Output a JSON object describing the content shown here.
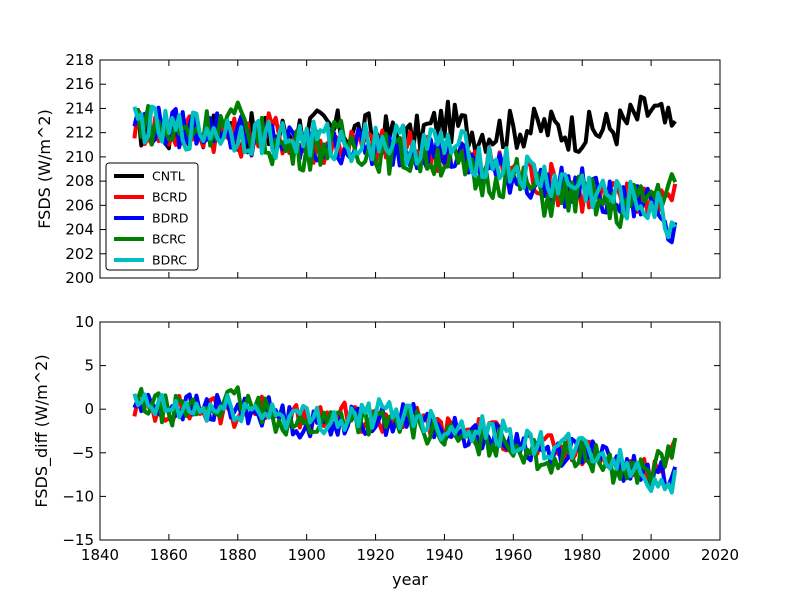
{
  "chart_data": [
    {
      "type": "line",
      "panel": "top",
      "xlabel": "",
      "ylabel": "FSDS (W/m^2)",
      "xlim": [
        1840,
        2020
      ],
      "ylim": [
        200,
        218
      ],
      "yticks": [
        "200",
        "202",
        "204",
        "206",
        "208",
        "210",
        "212",
        "214",
        "216",
        "218"
      ],
      "legend": {
        "placement": "lower-left"
      },
      "x": [
        1850,
        1860,
        1870,
        1880,
        1890,
        1900,
        1910,
        1920,
        1930,
        1940,
        1950,
        1960,
        1970,
        1980,
        1990,
        2000,
        2007
      ],
      "series": [
        {
          "name": "CNTL",
          "color": "#000000",
          "values": [
            212.5,
            212.0,
            212.4,
            212.0,
            211.8,
            212.5,
            212.2,
            212.0,
            211.5,
            213.0,
            212.0,
            212.3,
            212.5,
            212.0,
            212.5,
            214.0,
            212.0
          ]
        },
        {
          "name": "BCRD",
          "color": "#ff0000",
          "values": [
            212.8,
            212.0,
            212.3,
            211.5,
            212.2,
            210.8,
            211.3,
            210.8,
            210.5,
            210.5,
            209.5,
            209.0,
            208.0,
            207.0,
            206.5,
            206.8,
            207.0
          ]
        },
        {
          "name": "BDRD",
          "color": "#0000ff",
          "values": [
            213.0,
            212.3,
            212.5,
            212.0,
            211.5,
            210.5,
            211.0,
            210.5,
            210.8,
            210.5,
            209.0,
            208.5,
            207.5,
            207.5,
            206.0,
            206.5,
            204.0
          ]
        },
        {
          "name": "BCRC",
          "color": "#008000",
          "values": [
            213.5,
            211.8,
            212.5,
            213.0,
            211.0,
            210.5,
            211.5,
            210.5,
            210.0,
            210.0,
            208.0,
            208.5,
            206.5,
            207.0,
            205.5,
            207.0,
            207.5
          ]
        },
        {
          "name": "BDRC",
          "color": "#00bfbf",
          "values": [
            213.0,
            212.0,
            212.3,
            212.0,
            211.5,
            211.5,
            211.0,
            211.5,
            211.0,
            211.0,
            210.0,
            209.0,
            208.0,
            207.5,
            206.5,
            206.0,
            204.0
          ]
        }
      ]
    },
    {
      "type": "line",
      "panel": "bottom",
      "xlabel": "year",
      "ylabel": "FSDS_diff (W/m^2)",
      "xlim": [
        1840,
        2020
      ],
      "ylim": [
        -15,
        10
      ],
      "xticks": [
        "1840",
        "1860",
        "1880",
        "1900",
        "1920",
        "1940",
        "1960",
        "1980",
        "2000",
        "2020"
      ],
      "yticks": [
        "−15",
        "−10",
        "−5",
        "0",
        "5",
        "10"
      ],
      "x": [
        1850,
        1860,
        1870,
        1880,
        1890,
        1900,
        1910,
        1920,
        1930,
        1940,
        1950,
        1960,
        1970,
        1980,
        1990,
        2000,
        2007
      ],
      "series": [
        {
          "color": "#ff0000",
          "values": [
            0.3,
            0.0,
            -0.1,
            -0.5,
            0.4,
            -1.7,
            -0.9,
            -1.2,
            -1.0,
            -2.5,
            -2.5,
            -3.3,
            -4.5,
            -5.0,
            -6.0,
            -7.2,
            -5.0
          ]
        },
        {
          "color": "#0000ff",
          "values": [
            0.5,
            0.3,
            0.1,
            0.0,
            -0.3,
            -2.0,
            -1.2,
            -1.5,
            -0.7,
            -2.5,
            -3.0,
            -3.8,
            -5.0,
            -4.5,
            -6.5,
            -7.5,
            -8.0
          ]
        },
        {
          "color": "#008000",
          "values": [
            1.0,
            -0.2,
            0.1,
            1.0,
            -0.8,
            -2.0,
            -0.7,
            -1.5,
            -1.5,
            -3.0,
            -4.0,
            -3.8,
            -6.0,
            -5.0,
            -7.0,
            -7.0,
            -4.5
          ]
        },
        {
          "color": "#00bfbf",
          "values": [
            0.5,
            0.0,
            -0.1,
            0.0,
            -0.3,
            -1.0,
            -1.2,
            -0.5,
            -0.5,
            -2.0,
            -2.0,
            -3.3,
            -4.5,
            -4.5,
            -6.0,
            -8.0,
            -8.0
          ]
        }
      ]
    }
  ]
}
